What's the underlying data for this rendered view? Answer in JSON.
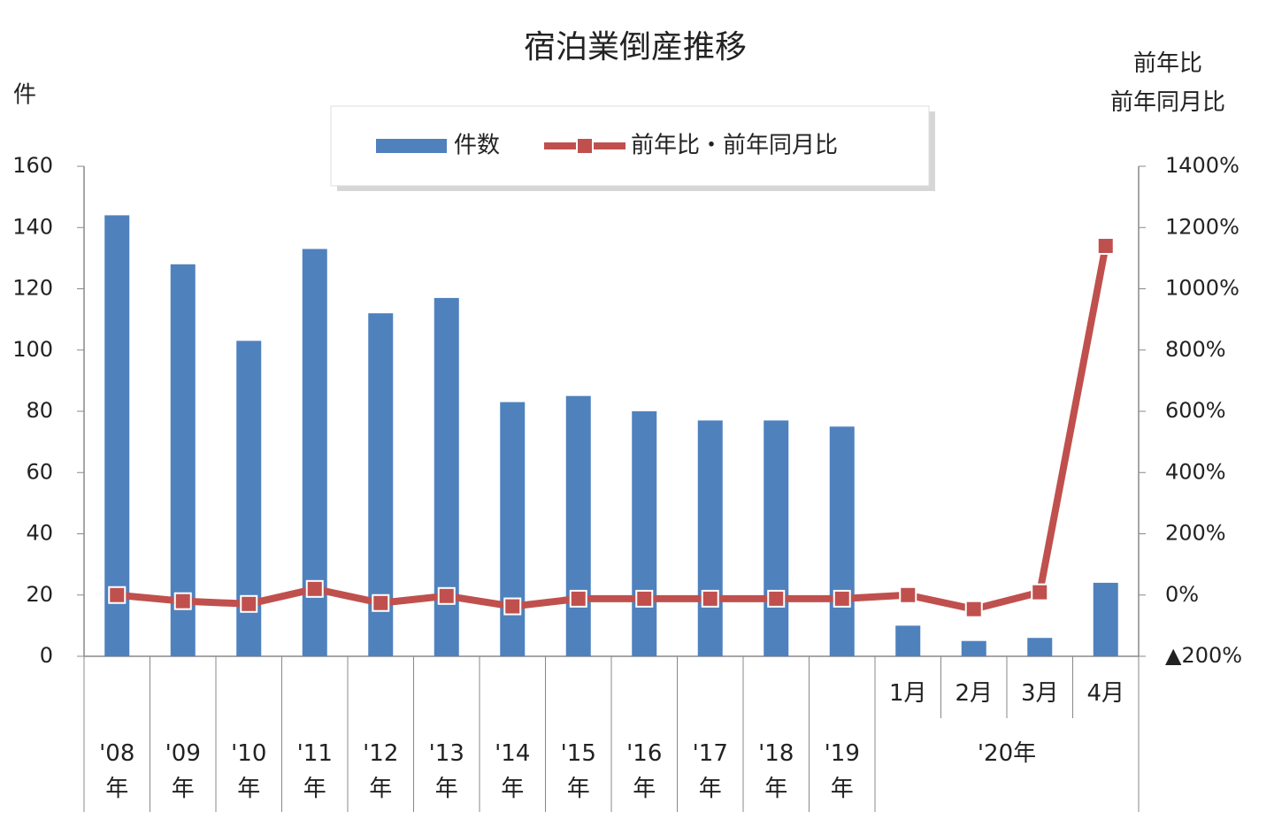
{
  "chart_data": {
    "type": "bar_line",
    "title": "宿泊業倒産推移",
    "y_label": "件",
    "y2_label": "前年比\n前年同月比",
    "categories": [
      "'08\n年",
      "'09\n年",
      "'10\n年",
      "'11\n年",
      "'12\n年",
      "'13\n年",
      "'14\n年",
      "'15\n年",
      "'16\n年",
      "'17\n年",
      "'18\n年",
      "'19\n年",
      "1月",
      "2月",
      "3月",
      "4月"
    ],
    "category_group": "'20年",
    "series": [
      {
        "name": "件数",
        "type": "bar",
        "color": "#4f81bd",
        "values": [
          144,
          128,
          103,
          133,
          112,
          117,
          83,
          85,
          80,
          77,
          77,
          75,
          10,
          5,
          6,
          24
        ]
      },
      {
        "name": "前年比・前年同月比",
        "type": "line",
        "axis": "y2",
        "color": "#c0504d",
        "values": [
          0,
          -20,
          -29,
          20,
          -26,
          -3,
          -37,
          -12,
          -12,
          -12,
          -12,
          -12,
          0,
          -46,
          9,
          1140
        ]
      }
    ],
    "ylim": [
      0,
      160
    ],
    "yticks": [
      0,
      20,
      40,
      60,
      80,
      100,
      120,
      140,
      160
    ],
    "y2lim": [
      -200,
      1400
    ],
    "y2ticks": [
      {
        "value": -200,
        "label": "▲200%"
      },
      {
        "value": 0,
        "label": "0%"
      },
      {
        "value": 200,
        "label": "200%"
      },
      {
        "value": 400,
        "label": "400%"
      },
      {
        "value": 600,
        "label": "600%"
      },
      {
        "value": 800,
        "label": "800%"
      },
      {
        "value": 1000,
        "label": "1000%"
      },
      {
        "value": 1200,
        "label": "1200%"
      },
      {
        "value": 1400,
        "label": "1400%"
      }
    ],
    "legend": "top",
    "grid": false
  }
}
